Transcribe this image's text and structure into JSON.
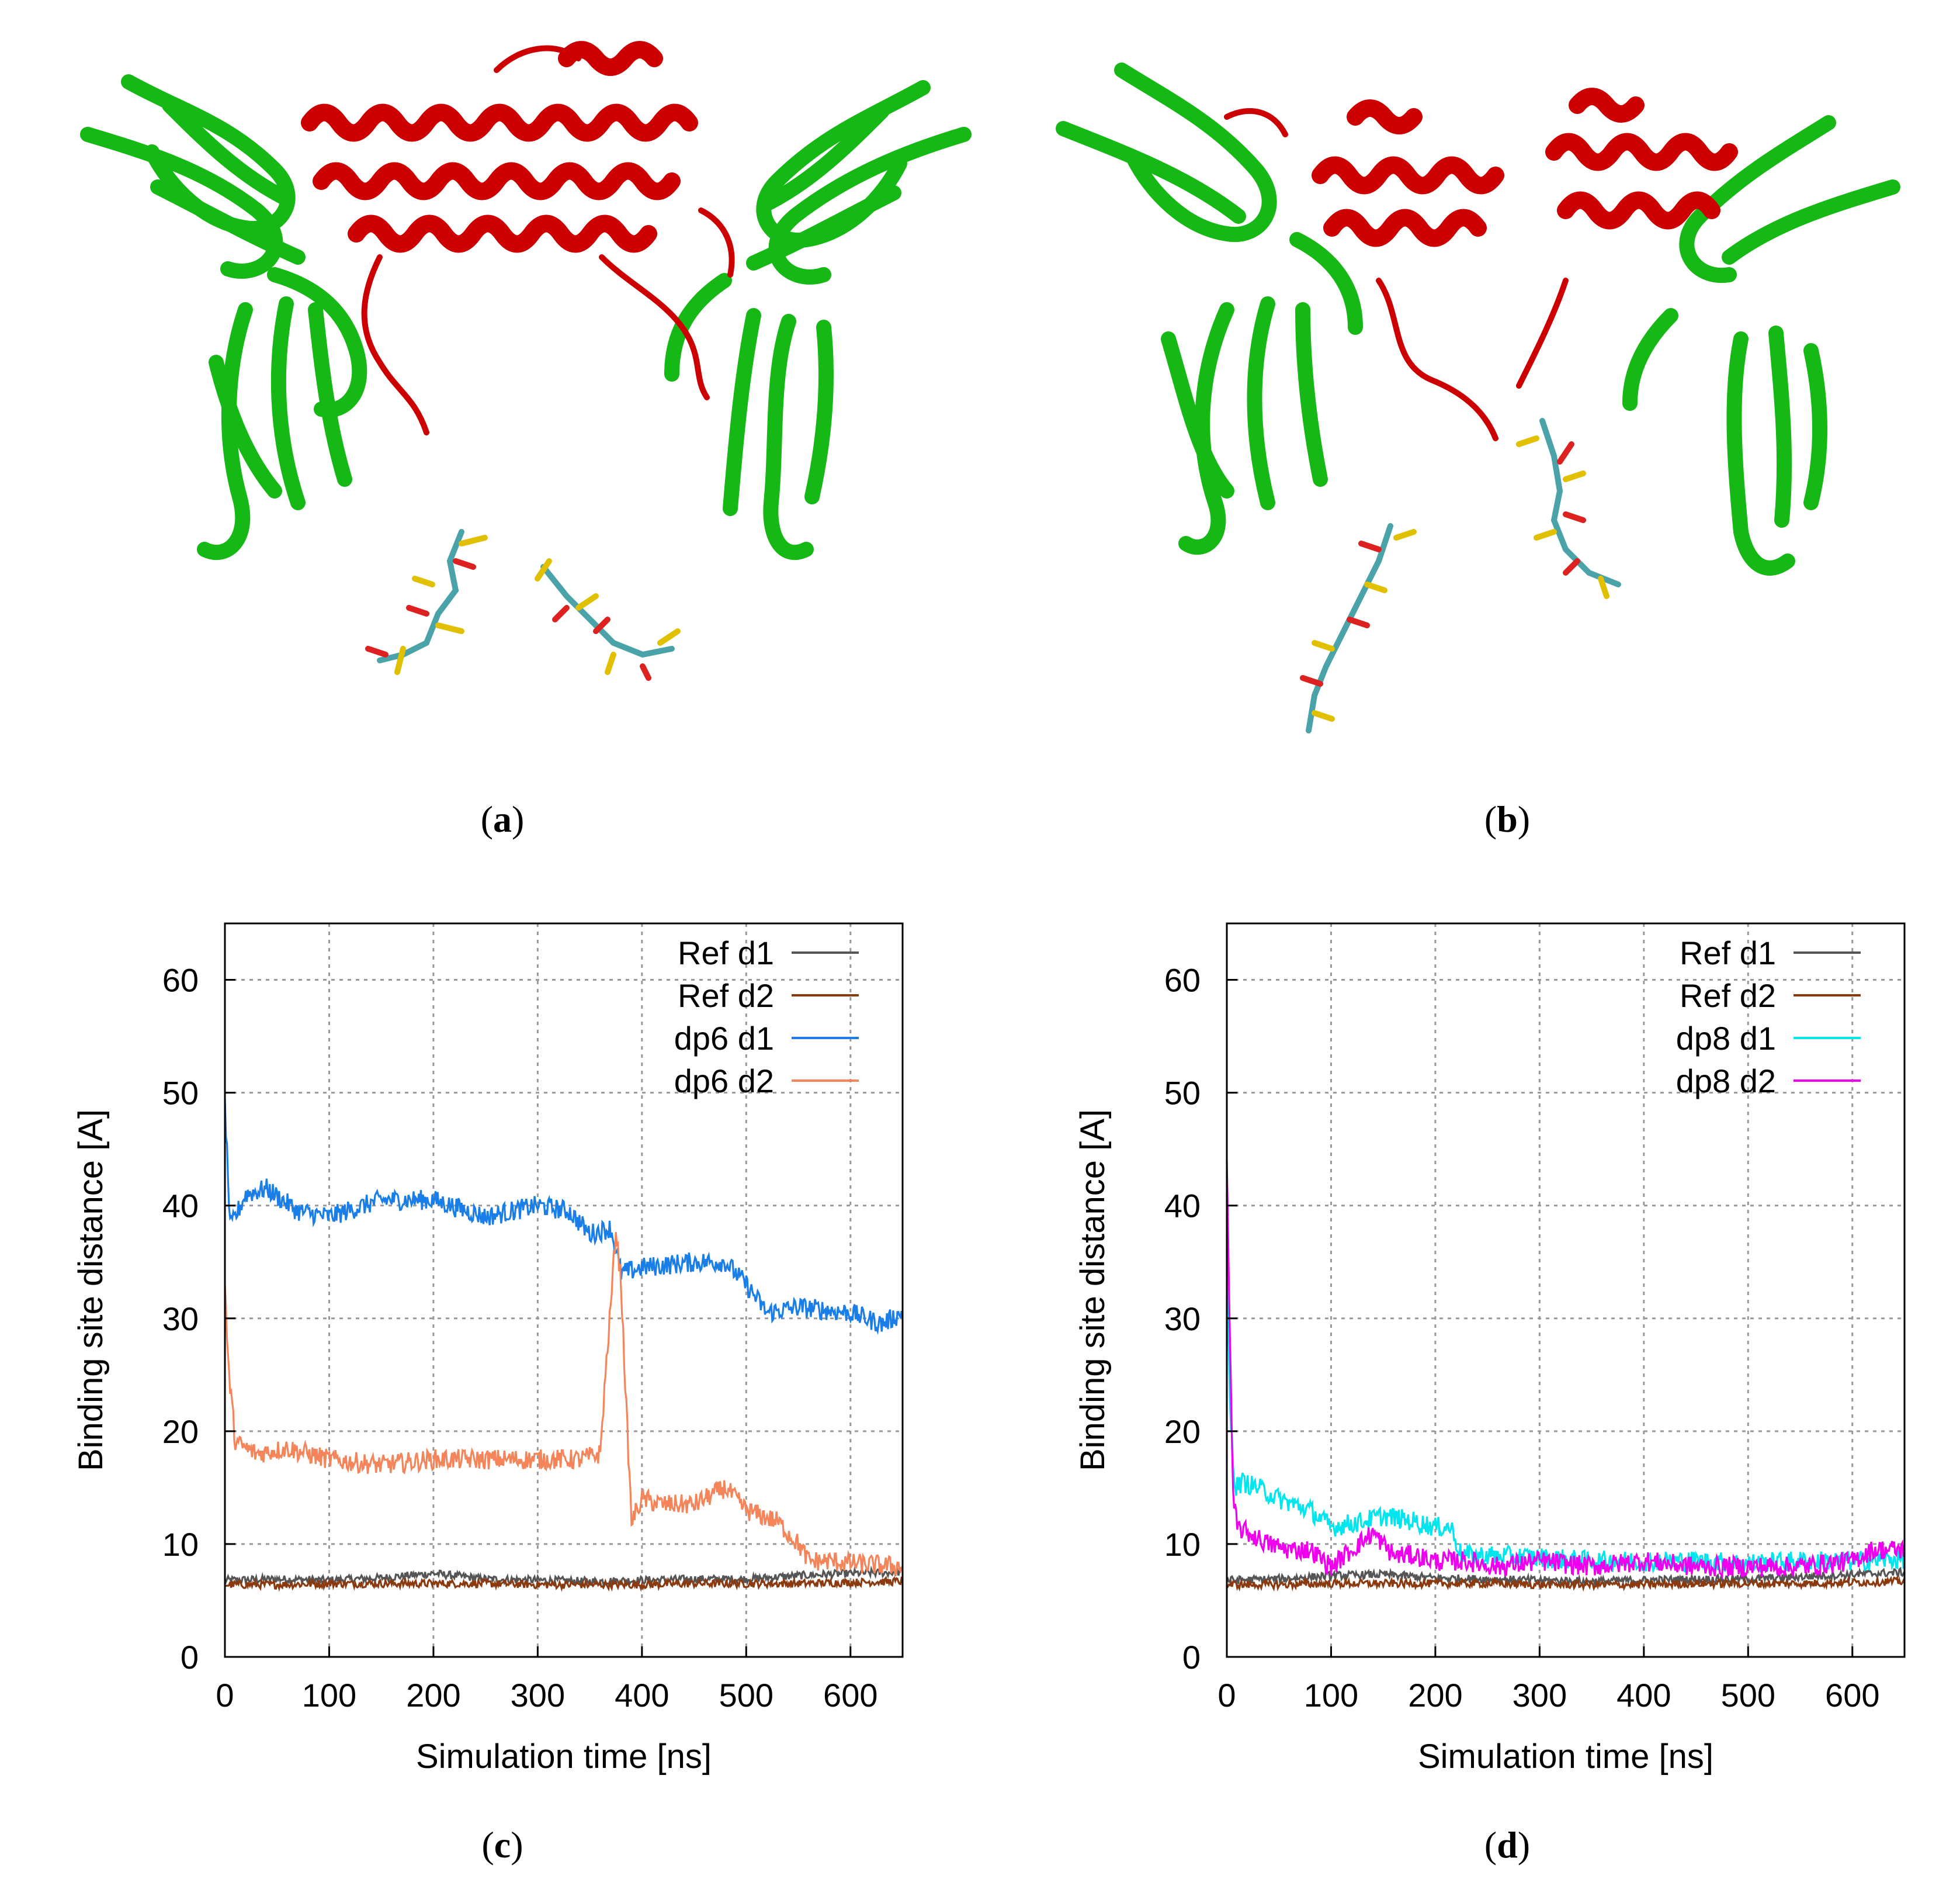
{
  "figure": {
    "panels": [
      {
        "id": "a",
        "caption": "a",
        "kind": "structure-image"
      },
      {
        "id": "b",
        "caption": "b",
        "kind": "structure-image"
      },
      {
        "id": "c",
        "caption": "c",
        "kind": "chart"
      },
      {
        "id": "d",
        "caption": "d",
        "kind": "chart"
      }
    ],
    "colors": {
      "protein_helix": "#cc0000",
      "protein_sheet": "#16b816",
      "ligand_carbon": "#4aa3a8",
      "ligand_sulfur": "#e0c000",
      "ligand_oxygen": "#dd2020",
      "ligand_nitrogen": "#2030c0"
    }
  },
  "chart_data": [
    {
      "type": "line",
      "panel": "c",
      "title": "",
      "xlabel": "Simulation time [ns]",
      "ylabel": "Binding site distance [A]",
      "xlim": [
        0,
        650
      ],
      "ylim": [
        0,
        65
      ],
      "xticks": [
        0,
        100,
        200,
        300,
        400,
        500,
        600
      ],
      "yticks": [
        0,
        10,
        20,
        30,
        40,
        50,
        60
      ],
      "grid": true,
      "legend_position": "top-right",
      "series": [
        {
          "name": "Ref d1",
          "color": "#555555",
          "x": [
            0,
            50,
            100,
            150,
            200,
            250,
            300,
            350,
            400,
            450,
            500,
            550,
            600,
            650
          ],
          "y": [
            6.8,
            6.9,
            6.8,
            7.0,
            7.4,
            6.9,
            6.8,
            6.7,
            6.8,
            6.9,
            6.9,
            7.2,
            7.4,
            7.5
          ]
        },
        {
          "name": "Ref d2",
          "color": "#8b3a0f",
          "x": [
            0,
            50,
            100,
            150,
            200,
            250,
            300,
            350,
            400,
            450,
            500,
            550,
            600,
            650
          ],
          "y": [
            6.4,
            6.4,
            6.5,
            6.5,
            6.5,
            6.5,
            6.4,
            6.4,
            6.4,
            6.5,
            6.5,
            6.5,
            6.6,
            6.7
          ]
        },
        {
          "name": "dp6 d1",
          "color": "#1a7ee8",
          "x": [
            0,
            5,
            20,
            40,
            70,
            100,
            150,
            200,
            250,
            300,
            330,
            350,
            370,
            380,
            400,
            450,
            480,
            500,
            520,
            550,
            600,
            630,
            650
          ],
          "y": [
            49,
            38,
            41,
            41.5,
            39.5,
            39,
            40.5,
            40.5,
            39,
            40,
            39.5,
            37.5,
            38,
            34,
            34.5,
            35,
            35,
            33,
            30.5,
            31,
            30.5,
            29.5,
            30.5
          ]
        },
        {
          "name": "dp6 d2",
          "color": "#f4855a",
          "x": [
            0,
            3,
            10,
            30,
            60,
            100,
            150,
            200,
            250,
            300,
            340,
            360,
            365,
            370,
            375,
            380,
            385,
            390,
            400,
            420,
            450,
            480,
            500,
            530,
            550,
            560,
            580,
            600,
            650
          ],
          "y": [
            33,
            26,
            19,
            18,
            18.5,
            17.5,
            17,
            17.5,
            17.5,
            17.5,
            17.5,
            18,
            25,
            31,
            38,
            33,
            22,
            12,
            14,
            13.5,
            13.5,
            15,
            13,
            12,
            10,
            8.5,
            8.5,
            8.3,
            8
          ]
        }
      ]
    },
    {
      "type": "line",
      "panel": "d",
      "title": "",
      "xlabel": "Simulation time [ns]",
      "ylabel": "Binding site distance [A]",
      "xlim": [
        0,
        650
      ],
      "ylim": [
        0,
        65
      ],
      "xticks": [
        0,
        100,
        200,
        300,
        400,
        500,
        600
      ],
      "yticks": [
        0,
        10,
        20,
        30,
        40,
        50,
        60
      ],
      "grid": true,
      "legend_position": "top-right",
      "series": [
        {
          "name": "Ref d1",
          "color": "#555555",
          "x": [
            0,
            50,
            100,
            150,
            200,
            250,
            300,
            350,
            400,
            450,
            500,
            550,
            600,
            650
          ],
          "y": [
            6.8,
            6.9,
            7.2,
            7.3,
            7.0,
            6.9,
            6.8,
            6.7,
            6.8,
            6.9,
            6.9,
            7.1,
            7.3,
            7.5
          ]
        },
        {
          "name": "Ref d2",
          "color": "#8b3a0f",
          "x": [
            0,
            50,
            100,
            150,
            200,
            250,
            300,
            350,
            400,
            450,
            500,
            550,
            600,
            650
          ],
          "y": [
            6.4,
            6.4,
            6.5,
            6.5,
            6.5,
            6.5,
            6.4,
            6.4,
            6.4,
            6.5,
            6.5,
            6.5,
            6.6,
            6.7
          ]
        },
        {
          "name": "dp8 d1",
          "color": "#00e5ee",
          "x": [
            0,
            3,
            8,
            15,
            30,
            50,
            80,
            100,
            130,
            150,
            180,
            200,
            215,
            225,
            250,
            300,
            350,
            400,
            450,
            500,
            550,
            600,
            650
          ],
          "y": [
            35,
            22,
            15,
            15.5,
            15,
            14,
            13,
            11.5,
            12,
            12.5,
            12,
            11.5,
            11.5,
            9,
            9,
            8.8,
            8.5,
            8.5,
            8.5,
            8.3,
            8.5,
            8.5,
            8.7
          ]
        },
        {
          "name": "dp8 d2",
          "color": "#ee00ee",
          "x": [
            0,
            3,
            6,
            10,
            20,
            40,
            60,
            80,
            100,
            120,
            140,
            160,
            180,
            200,
            230,
            260,
            300,
            350,
            400,
            450,
            500,
            550,
            600,
            620,
            650
          ],
          "y": [
            44,
            28,
            14,
            11.5,
            11,
            10,
            9.5,
            9.5,
            8,
            9.5,
            11,
            9,
            9,
            8.5,
            8.5,
            8,
            8.5,
            8,
            8.5,
            8,
            8,
            8,
            8.5,
            9.5,
            9.5
          ]
        }
      ]
    }
  ]
}
